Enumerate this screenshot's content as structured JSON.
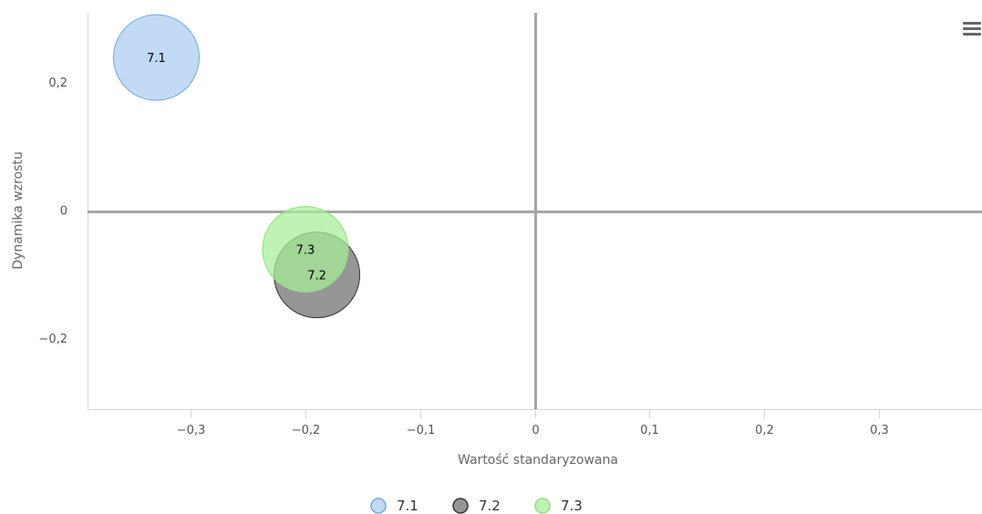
{
  "chart_data": {
    "type": "scatter",
    "subtype": "bubble",
    "title": "",
    "xlabel": "Wartość standaryzowana",
    "ylabel": "Dynamika wzrostu",
    "xlim": [
      -0.39,
      0.39
    ],
    "ylim": [
      -0.31,
      0.31
    ],
    "x_ticks": [
      {
        "value": -0.3,
        "label": "−0,3"
      },
      {
        "value": -0.2,
        "label": "−0,2"
      },
      {
        "value": -0.1,
        "label": "−0,1"
      },
      {
        "value": 0,
        "label": "0"
      },
      {
        "value": 0.1,
        "label": "0,1"
      },
      {
        "value": 0.2,
        "label": "0,2"
      },
      {
        "value": 0.3,
        "label": "0,3"
      }
    ],
    "y_ticks": [
      {
        "value": 0.2,
        "label": "0,2"
      },
      {
        "value": 0,
        "label": "0"
      },
      {
        "value": -0.2,
        "label": "−0,2"
      }
    ],
    "grid": false,
    "zero_lines": true,
    "legend_position": "bottom-center",
    "series": [
      {
        "name": "7.1",
        "label": "7.1",
        "x": -0.33,
        "y": 0.24,
        "fill": "#aaccf0",
        "stroke": "#6fa8e6"
      },
      {
        "name": "7.2",
        "label": "7.2",
        "x": -0.19,
        "y": -0.1,
        "fill": "#6e6e6e",
        "stroke": "#333333"
      },
      {
        "name": "7.3",
        "label": "7.3",
        "x": -0.2,
        "y": -0.06,
        "fill": "#a5ee96",
        "stroke": "#8ee07c"
      }
    ]
  },
  "menu": {
    "icon": "hamburger-menu-icon"
  }
}
